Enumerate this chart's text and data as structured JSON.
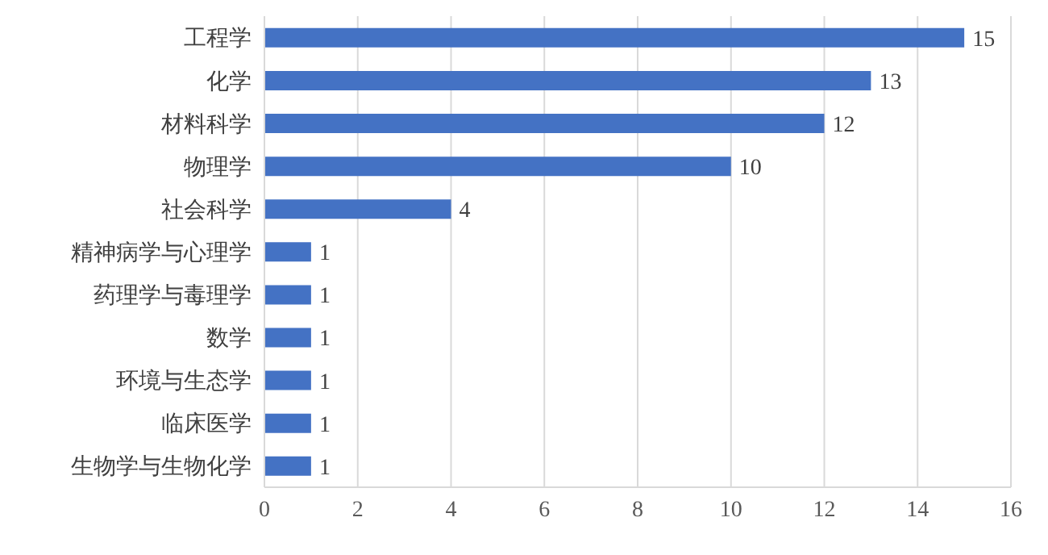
{
  "chart_data": {
    "type": "bar",
    "orientation": "horizontal",
    "categories": [
      "工程学",
      "化学",
      "材料科学",
      "物理学",
      "社会科学",
      "精神病学与心理学",
      "药理学与毒理学",
      "数学",
      "环境与生态学",
      "临床医学",
      "生物学与生物化学"
    ],
    "values": [
      15,
      13,
      12,
      10,
      4,
      1,
      1,
      1,
      1,
      1,
      1
    ],
    "color": "#4472c4",
    "xlim": [
      0,
      16
    ],
    "xticks": [
      0,
      2,
      4,
      6,
      8,
      10,
      12,
      14,
      16
    ],
    "grid": "x",
    "data_labels": true
  }
}
